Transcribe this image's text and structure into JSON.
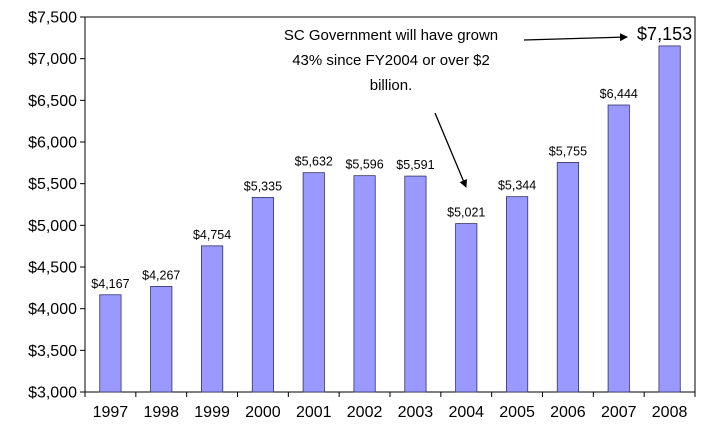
{
  "chart_data": {
    "type": "bar",
    "categories": [
      "1997",
      "1998",
      "1999",
      "2000",
      "2001",
      "2002",
      "2003",
      "2004",
      "2005",
      "2006",
      "2007",
      "2008"
    ],
    "values": [
      4167,
      4267,
      4754,
      5335,
      5632,
      5596,
      5591,
      5021,
      5344,
      5755,
      6444,
      7153
    ],
    "data_labels": [
      "$4,167",
      "$4,267",
      "$4,754",
      "$5,335",
      "$5,632",
      "$5,596",
      "$5,591",
      "$5,021",
      "$5,344",
      "$5,755",
      "$6,444",
      "$7,153"
    ],
    "ylim": [
      3000,
      7500
    ],
    "yticks": [
      3000,
      3500,
      4000,
      4500,
      5000,
      5500,
      6000,
      6500,
      7000,
      7500
    ],
    "ytick_labels": [
      "$3,000",
      "$3,500",
      "$4,000",
      "$4,500",
      "$5,000",
      "$5,500",
      "$6,000",
      "$6,500",
      "$7,000",
      "$7,500"
    ],
    "title": "",
    "xlabel": "",
    "ylabel": "",
    "grid": false,
    "bar_color": "#9999ff",
    "bar_edge_color": "#333366",
    "annotation": {
      "lines": [
        "SC Government will have grown",
        "43% since FY2004 or over $2",
        "billion."
      ]
    }
  }
}
